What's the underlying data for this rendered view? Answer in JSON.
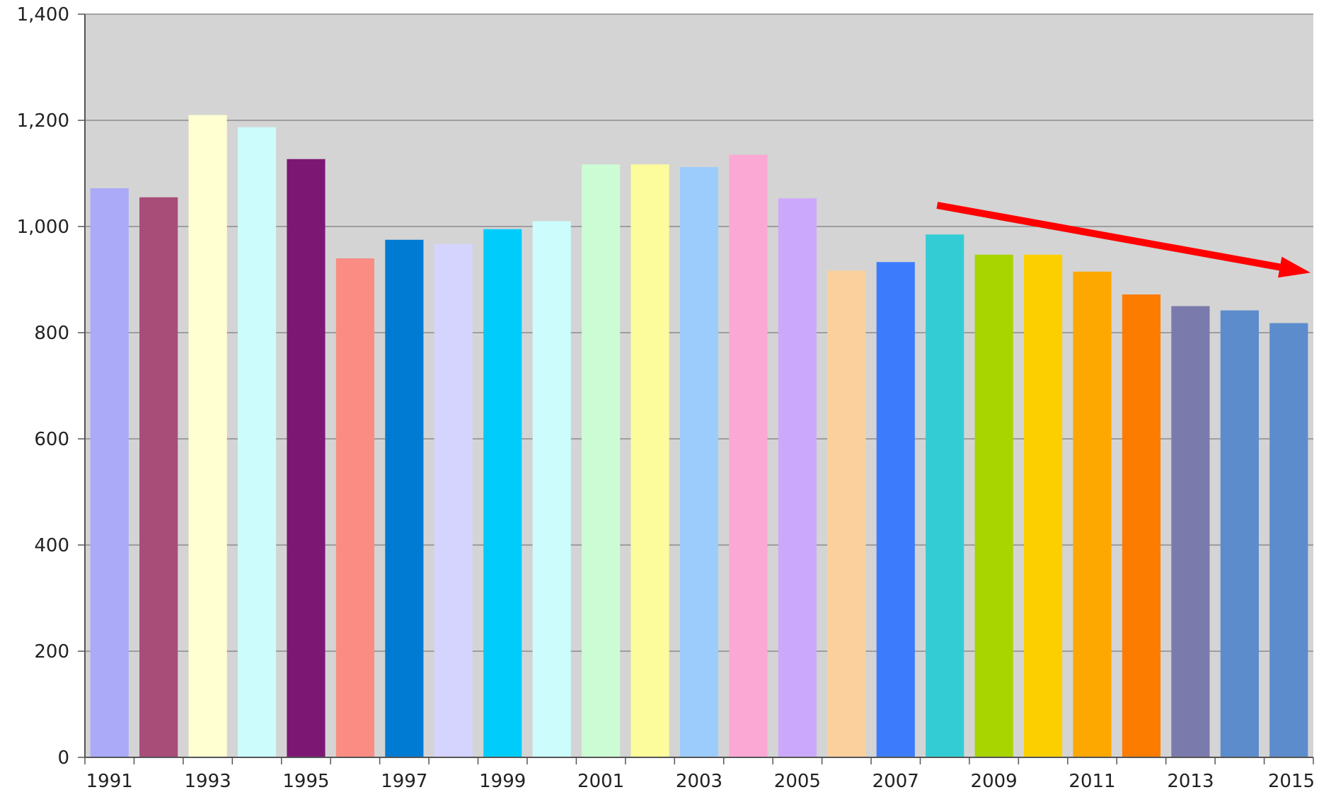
{
  "chart_data": {
    "type": "bar",
    "categories": [
      "1991",
      "1992",
      "1993",
      "1994",
      "1995",
      "1996",
      "1997",
      "1998",
      "1999",
      "2000",
      "2001",
      "2002",
      "2003",
      "2004",
      "2005",
      "2006",
      "2007",
      "2008",
      "2009",
      "2010",
      "2011",
      "2012",
      "2013",
      "2014",
      "2015"
    ],
    "values": [
      1072,
      1055,
      1210,
      1187,
      1127,
      940,
      975,
      967,
      995,
      1010,
      1117,
      1117,
      1112,
      1135,
      1053,
      917,
      933,
      985,
      947,
      947,
      915,
      872,
      850,
      842,
      818
    ],
    "colors": [
      "#aaaaf8",
      "#a84c78",
      "#ffffd2",
      "#ccfcfc",
      "#7c1874",
      "#fa8c84",
      "#007bd4",
      "#d4d4ff",
      "#00ccfc",
      "#ccfcfc",
      "#ccfcd4",
      "#fcfc9c",
      "#9cccfc",
      "#fca8d4",
      "#cca8fc",
      "#fcd09c",
      "#3c7cfc",
      "#34ccd4",
      "#a8d400",
      "#fcd000",
      "#fca800",
      "#fc7c00",
      "#7a7aac",
      "#5c8ccc",
      "#5c8ccc"
    ],
    "x_tick_labels": [
      "1991",
      "1993",
      "1995",
      "1997",
      "1999",
      "2001",
      "2003",
      "2005",
      "2007",
      "2009",
      "2011",
      "2013",
      "2015"
    ],
    "y_tick_labels": [
      "0",
      "200",
      "400",
      "600",
      "800",
      "1,000",
      "1,200",
      "1,400"
    ],
    "ylim": [
      0,
      1400
    ],
    "y_tick_step": 200,
    "title": "",
    "xlabel": "",
    "ylabel": "",
    "grid": true,
    "plot_background": "#d4d4d4",
    "gridline_color": "#8c8c8c",
    "annotation": {
      "type": "trend-arrow",
      "color": "#ff0000",
      "from": {
        "x": "2008",
        "y": 1040
      },
      "to": {
        "x": "2015",
        "y": 913
      }
    }
  }
}
